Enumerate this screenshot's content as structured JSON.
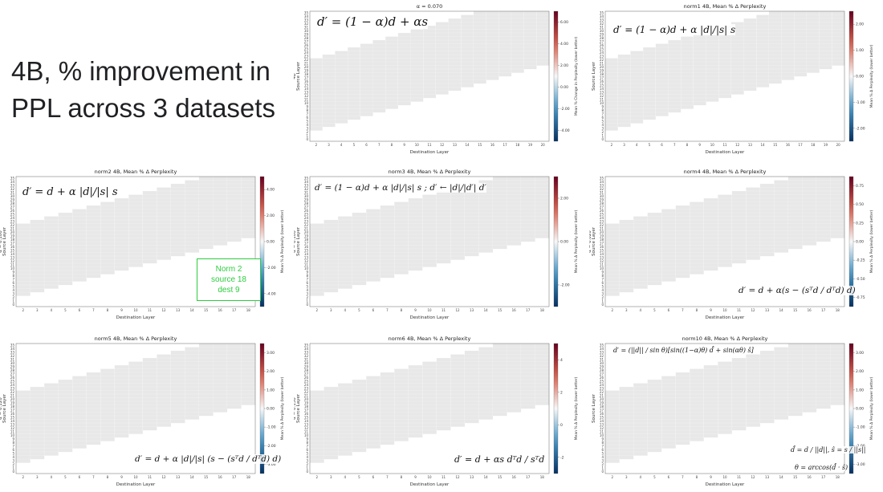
{
  "slide": {
    "title": "4B, % improvement in PPL across 3 datasets"
  },
  "chart_data": [
    {
      "type": "heatmap",
      "title": "α = 0.070",
      "ylabel_top": "4B",
      "ylabel": "Source Layer",
      "xlabel": "Destination Layer",
      "cbar_label": "Mean % Change in Perplexity (lower better)",
      "cbar_ticks": [
        "6.00",
        "4.00",
        "2.00",
        "0.00",
        "-2.00",
        "-4.00"
      ],
      "vmin": -4,
      "vmax": 6,
      "n_src": 36,
      "n_dst": 19,
      "formula": "d′ = (1 − α)d + αs"
    },
    {
      "type": "heatmap",
      "title": "norm1 4B, Mean % Δ Perplexity",
      "ylabel": "Source Layer",
      "xlabel": "Destination Layer",
      "cbar_label": "Mean % Δ Perplexity (lower better)",
      "cbar_ticks": [
        "2.00",
        "1.00",
        "0.00",
        "-1.00",
        "-2.00"
      ],
      "vmin": -2,
      "vmax": 2,
      "n_src": 36,
      "n_dst": 19,
      "formula": "d′ = (1 − α)d + α |d|/|s| s"
    },
    {
      "type": "heatmap",
      "title": "norm2 4B, Mean % Δ Perplexity",
      "ylabel_top": "α = 0.100",
      "ylabel": "Source Layer",
      "xlabel": "Destination Layer",
      "cbar_label": "Mean % Δ Perplexity (lower better)",
      "cbar_ticks": [
        "4.00",
        "2.00",
        "0.00",
        "-2.00",
        "-4.00"
      ],
      "vmin": -4,
      "vmax": 4,
      "n_src": 36,
      "n_dst": 17,
      "formula": "d′ = d + α |d|/|s| s",
      "annotation": [
        "Norm 2",
        "source 18",
        "dest 9"
      ]
    },
    {
      "type": "heatmap",
      "title": "norm3 4B, Mean % Δ Perplexity",
      "ylabel_top": "α = 0.100",
      "ylabel": "Source Layer",
      "xlabel": "Destination Layer",
      "cbar_label": "Mean % Δ Perplexity (lower better)",
      "cbar_ticks": [
        "2.00",
        "0.00",
        "-2.00"
      ],
      "vmin": -3,
      "vmax": 3,
      "n_src": 36,
      "n_dst": 17,
      "formula": "d′ = (1 − α)d + α |d|/|s| s ;  d′ ← |d|/|d′| d′"
    },
    {
      "type": "heatmap",
      "title": "norm4 4B, Mean % Δ Perplexity",
      "ylabel_top": "α = 0.020",
      "ylabel": "Source Layer",
      "xlabel": "Destination Layer",
      "cbar_label": "Mean % Δ Perplexity (lower better)",
      "cbar_ticks": [
        "0.75",
        "0.50",
        "0.25",
        "0.00",
        "-0.25",
        "-0.50",
        "-0.75"
      ],
      "vmin": -0.75,
      "vmax": 0.75,
      "n_src": 36,
      "n_dst": 17,
      "formula": "d′ = d + α(s − (sᵀd / dᵀd) d)"
    },
    {
      "type": "heatmap",
      "title": "norm5 4B, Mean % Δ Perplexity",
      "ylabel_top": "α = 0.120",
      "ylabel": "Source Layer",
      "xlabel": "Destination Layer",
      "cbar_label": "Mean % Δ Perplexity (lower better)",
      "cbar_ticks": [
        "3.00",
        "2.00",
        "1.00",
        "0.00",
        "-1.00",
        "-2.00",
        "-3.00"
      ],
      "vmin": -3,
      "vmax": 3,
      "n_src": 36,
      "n_dst": 17,
      "formula": "d′ = d + α |d|/|s| (s − (sᵀd / dᵀd) d)"
    },
    {
      "type": "heatmap",
      "title": "norm6 4B, Mean % Δ Perplexity",
      "ylabel_top": "α = 0.150",
      "ylabel": "Source Layer",
      "xlabel": "Destination Layer",
      "cbar_label": "Mean % Δ Perplexity (lower better)",
      "cbar_ticks": [
        "4",
        "2",
        "0",
        "-2"
      ],
      "vmin": -3,
      "vmax": 4.5,
      "n_src": 36,
      "n_dst": 17,
      "formula": "d′ = d + αs dᵀd / sᵀd"
    },
    {
      "type": "heatmap",
      "title": "norm10 4B, Mean % Δ Perplexity",
      "ylabel": "Source Layer",
      "xlabel": "Destination Layer",
      "cbar_label": "Mean % Δ Perplexity (lower better)",
      "cbar_ticks": [
        "3.00",
        "2.00",
        "1.00",
        "0.00",
        "-1.00",
        "-2.00",
        "-3.00"
      ],
      "vmin": -3,
      "vmax": 3,
      "n_src": 36,
      "n_dst": 17,
      "formula": "d′ = (||d|| / sin θ)[sin((1−α)θ) d̂ + sin(αθ) ŝ]",
      "formula2": "d̂ = d / ||d||,  ŝ = s / ||s||",
      "formula3": "θ = arccos(d̂ · ŝ)"
    }
  ]
}
